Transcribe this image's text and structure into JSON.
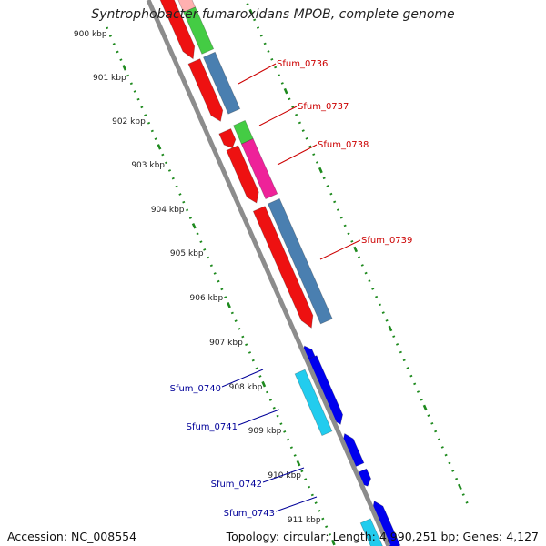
{
  "header": {
    "title": "Syntrophobacter fumaroxidans MPOB, complete genome"
  },
  "footer": {
    "accession": "Accession: NC_008554",
    "summary": "Topology: circular; Length: 4,990,251 bp; Genes: 4,127"
  },
  "ruler": {
    "unit": "kbp",
    "labels": [
      "900 kbp",
      "901 kbp",
      "902 kbp",
      "903 kbp",
      "904 kbp",
      "905 kbp",
      "906 kbp",
      "907 kbp",
      "908 kbp",
      "909 kbp",
      "910 kbp",
      "911 kbp"
    ]
  },
  "genes": [
    {
      "label": "Sfum_0736",
      "color": "#cc0000"
    },
    {
      "label": "Sfum_0737",
      "color": "#cc0000"
    },
    {
      "label": "Sfum_0738",
      "color": "#cc0000"
    },
    {
      "label": "Sfum_0739",
      "color": "#cc0000"
    },
    {
      "label": "Sfum_0740",
      "color": "#000099"
    },
    {
      "label": "Sfum_0741",
      "color": "#000099"
    },
    {
      "label": "Sfum_0742",
      "color": "#000099"
    },
    {
      "label": "Sfum_0743",
      "color": "#000099"
    }
  ],
  "colors": {
    "backbone": "#8c8c8c",
    "tick": "#1e8a1e",
    "forward_cds": "#ee1111",
    "reverse_cds_a": "#4a7fb0",
    "reverse_cds_b": "#44cc44",
    "reverse_cds_c": "#ee2299",
    "blue_cds": "#0000ee",
    "cyan_cds": "#22ccee"
  }
}
